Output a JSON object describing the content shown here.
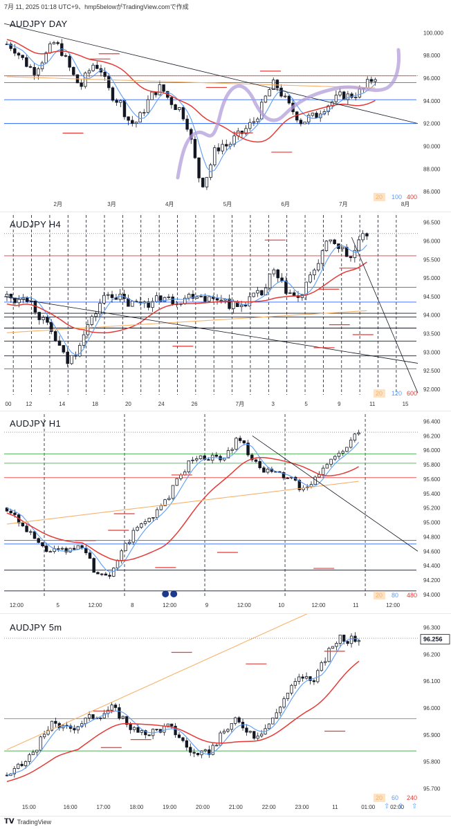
{
  "header": {
    "text": "7月 11, 2025 01:18 UTC+9、hmp5belowがTradingView.comで作成"
  },
  "footer": {
    "brand": "TradingView",
    "logo_icon": "tradingview-logo-icon"
  },
  "colors": {
    "up": "#131722",
    "ma_fast": "#5b9cf6",
    "ma_mid": "#e53935",
    "ma_slow": "#f7b26a",
    "level_red": "#e53935",
    "level_blue": "#2962ff",
    "level_green": "#4caf50",
    "hand_drawn": "#b39ddb"
  },
  "chart_data": [
    {
      "type": "candlestick",
      "title": "AUDJPY  DAY",
      "y_ticks": [
        "100.000",
        "98.000",
        "96.000",
        "94.000",
        "92.000",
        "90.000",
        "88.000",
        "86.000"
      ],
      "ylim": [
        85.4,
        101.6
      ],
      "x_ticks": [
        "2月",
        "3月",
        "4月",
        "5月",
        "6月",
        "7月",
        "8月"
      ],
      "ma_legend": [
        "20",
        "100",
        "400"
      ],
      "close_path": [
        99.0,
        98.7,
        97.9,
        97.2,
        96.6,
        97.4,
        98.2,
        99.1,
        98.6,
        97.3,
        96.1,
        95.2,
        96.4,
        97.3,
        96.8,
        95.1,
        94.3,
        93.8,
        92.4,
        91.9,
        92.7,
        93.9,
        94.8,
        95.2,
        94.3,
        93.6,
        93.2,
        91.8,
        89.0,
        86.5,
        87.6,
        89.5,
        90.2,
        90.0,
        90.7,
        91.1,
        91.7,
        92.3,
        93.4,
        94.8,
        95.6,
        94.6,
        93.6,
        92.9,
        92.1,
        92.5,
        92.6,
        93.3,
        93.7,
        94.1,
        94.5,
        94.4,
        94.6,
        94.9,
        95.6,
        96.2
      ],
      "hline_values": [
        95.6,
        96.2,
        94.1,
        92.0
      ],
      "annotation": "hand-drawn purple path showing expected rise"
    },
    {
      "type": "candlestick",
      "title": "AUDJPY  H4",
      "y_ticks": [
        "96.500",
        "96.000",
        "95.500",
        "95.000",
        "94.500",
        "94.000",
        "93.500",
        "93.000",
        "92.500",
        "92.000"
      ],
      "ylim": [
        91.85,
        96.7
      ],
      "x_ticks": [
        "00",
        "12",
        "14",
        "18",
        "20",
        "24",
        "26",
        "7月",
        "3",
        "5",
        "9",
        "11",
        "15"
      ],
      "ma_legend": [
        "20",
        "120",
        "600"
      ],
      "close_path": [
        94.5,
        94.4,
        94.6,
        94.3,
        93.9,
        93.6,
        93.2,
        92.7,
        93.0,
        93.6,
        93.9,
        94.4,
        94.6,
        94.5,
        94.3,
        94.3,
        94.4,
        94.3,
        94.5,
        94.4,
        94.4,
        94.5,
        94.6,
        94.5,
        94.4,
        94.5,
        94.3,
        94.2,
        94.4,
        94.5,
        94.6,
        95.2,
        94.8,
        94.6,
        94.4,
        94.8,
        95.3,
        95.8,
        96.0,
        95.8,
        95.5,
        95.9,
        96.2
      ]
    },
    {
      "type": "candlestick",
      "title": "AUDJPY  H1",
      "y_ticks": [
        "96.400",
        "96.200",
        "96.000",
        "95.800",
        "95.600",
        "95.400",
        "95.200",
        "95.000",
        "94.800",
        "94.600",
        "94.400",
        "94.200",
        "94.000"
      ],
      "ylim": [
        93.97,
        96.5
      ],
      "x_ticks": [
        "12:00",
        "5",
        "12:00",
        "8",
        "12:00",
        "9",
        "12:00",
        "10",
        "12:00",
        "11",
        "12:00"
      ],
      "ma_legend": [
        "20",
        "80",
        "480"
      ],
      "event_icon": "flag-au-icon",
      "close_path": [
        95.2,
        95.1,
        94.9,
        94.8,
        94.65,
        94.6,
        94.6,
        94.6,
        94.65,
        94.7,
        94.35,
        94.3,
        94.3,
        94.5,
        94.7,
        94.9,
        95.0,
        95.1,
        95.2,
        95.4,
        95.6,
        95.8,
        95.9,
        95.9,
        95.9,
        95.85,
        96.0,
        96.2,
        96.0,
        95.8,
        95.7,
        95.7,
        95.65,
        95.6,
        95.5,
        95.45,
        95.6,
        95.8,
        95.9,
        95.95,
        96.1,
        96.25
      ]
    },
    {
      "type": "candlestick",
      "title": "AUDJPY  5m",
      "price_label": "96.256",
      "y_ticks": [
        "96.300",
        "96.200",
        "96.100",
        "96.000",
        "95.900",
        "95.800",
        "95.700"
      ],
      "ylim": [
        95.66,
        96.34
      ],
      "x_ticks": [
        "15:00",
        "16:00",
        "17:00",
        "18:00",
        "19:00",
        "20:00",
        "21:00",
        "22:00",
        "23:00",
        "11",
        "01:00",
        "02:00"
      ],
      "ma_legend": [
        "20",
        "60",
        "240"
      ],
      "close_path": [
        95.75,
        95.77,
        95.8,
        95.85,
        95.9,
        95.95,
        95.92,
        95.93,
        95.95,
        95.97,
        95.98,
        96.0,
        95.97,
        95.93,
        95.9,
        95.91,
        95.92,
        95.93,
        95.9,
        95.85,
        95.82,
        95.83,
        95.87,
        95.92,
        95.95,
        95.93,
        95.9,
        95.92,
        95.96,
        96.03,
        96.08,
        96.12,
        96.1,
        96.15,
        96.22,
        96.27,
        96.25,
        96.26
      ]
    }
  ]
}
